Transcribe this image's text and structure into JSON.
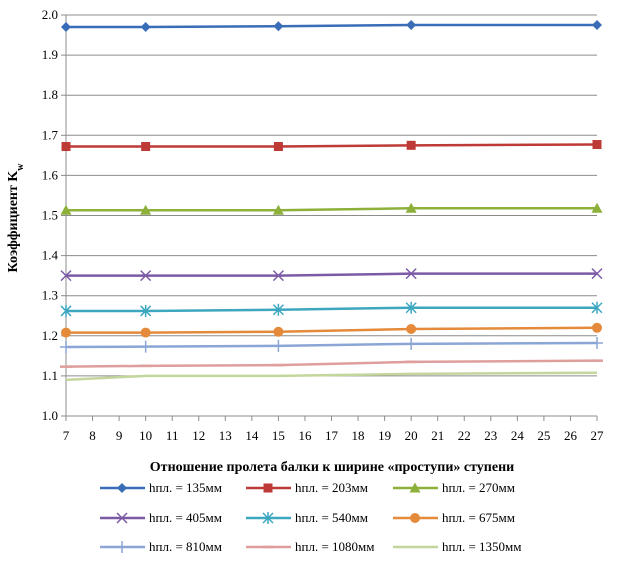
{
  "chart_data": {
    "type": "line",
    "x": [
      7,
      10,
      15,
      20,
      27
    ],
    "xlim": [
      7,
      27
    ],
    "x_ticks": [
      "7",
      "8",
      "9",
      "10",
      "11",
      "12",
      "13",
      "14",
      "15",
      "16",
      "17",
      "18",
      "19",
      "20",
      "21",
      "22",
      "23",
      "24",
      "25",
      "26",
      "27"
    ],
    "ylim": [
      1.0,
      2.0
    ],
    "y_ticks": [
      "1.0",
      "1.1",
      "1.2",
      "1.3",
      "1.4",
      "1.5",
      "1.6",
      "1.7",
      "1.8",
      "1.9",
      "2.0"
    ],
    "xlabel": "Отношение пролета балки к ширине «проступи» ступени",
    "ylabel": "Коэффициент K",
    "ylabel_sub": "w",
    "grid": true,
    "legend_position": "bottom",
    "series": [
      {
        "name": "hпл. = 135мм",
        "color": "#3A6DB8",
        "marker": "diamond",
        "values": [
          1.97,
          1.97,
          1.972,
          1.975,
          1.975
        ]
      },
      {
        "name": "hпл. = 203мм",
        "color": "#BE3A36",
        "marker": "square",
        "values": [
          1.672,
          1.672,
          1.672,
          1.675,
          1.677
        ]
      },
      {
        "name": "hпл. = 270мм",
        "color": "#8DB03A",
        "marker": "triangle",
        "values": [
          1.513,
          1.513,
          1.513,
          1.518,
          1.518
        ]
      },
      {
        "name": "hпл. = 405мм",
        "color": "#7B5AA6",
        "marker": "x",
        "values": [
          1.35,
          1.35,
          1.35,
          1.355,
          1.355
        ]
      },
      {
        "name": "hпл. = 540мм",
        "color": "#3DA7C0",
        "marker": "star",
        "values": [
          1.262,
          1.262,
          1.265,
          1.27,
          1.27
        ]
      },
      {
        "name": "hпл. = 675мм",
        "color": "#E48A3A",
        "marker": "circle",
        "values": [
          1.208,
          1.208,
          1.21,
          1.217,
          1.22
        ]
      },
      {
        "name": "hпл. = 810мм",
        "color": "#8BA6D6",
        "marker": "plus",
        "values": [
          1.172,
          1.173,
          1.175,
          1.18,
          1.182
        ]
      },
      {
        "name": "hпл. = 1080мм",
        "color": "#DE9E9C",
        "marker": "dash",
        "values": [
          1.123,
          1.125,
          1.127,
          1.135,
          1.138
        ]
      },
      {
        "name": "hпл. = 1350мм",
        "color": "#C3D69B",
        "marker": "none",
        "values": [
          1.09,
          1.1,
          1.1,
          1.105,
          1.108
        ]
      }
    ]
  }
}
